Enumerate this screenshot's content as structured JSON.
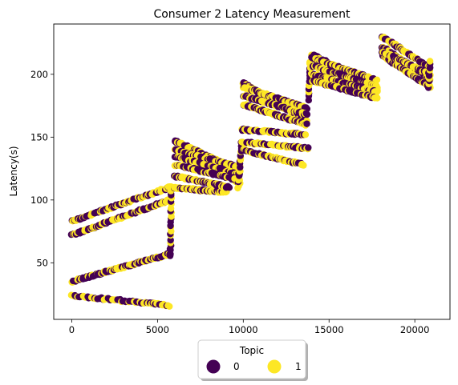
{
  "chart_data": {
    "type": "scatter",
    "title": "Consumer 2 Latency Measurement",
    "xlabel": "",
    "ylabel": "Latency(s)",
    "xlim": [
      -1050,
      22050
    ],
    "ylim": [
      5,
      240
    ],
    "x_ticks": [
      0,
      5000,
      10000,
      15000,
      20000
    ],
    "x_tick_labels": [
      "0",
      "5000",
      "10000",
      "15000",
      "20000"
    ],
    "y_ticks": [
      50,
      100,
      150,
      200
    ],
    "y_tick_labels": [
      "50",
      "100",
      "150",
      "200"
    ],
    "grid": false,
    "legend": {
      "title": "Topic",
      "placement": "below-center",
      "entries": [
        {
          "label": "0",
          "color": "#440154"
        },
        {
          "label": "1",
          "color": "#fde725"
        }
      ]
    },
    "series": [
      {
        "name": "0",
        "color": "#440154"
      },
      {
        "name": "1",
        "color": "#fde725"
      }
    ],
    "segments": [
      {
        "x": [
          0,
          5700
        ],
        "y": [
          24,
          16
        ],
        "n": 70
      },
      {
        "x": [
          0,
          5700
        ],
        "y": [
          35,
          57
        ],
        "n": 110
      },
      {
        "x": [
          0,
          5700
        ],
        "y": [
          72,
          100
        ],
        "n": 110
      },
      {
        "x": [
          0,
          5700
        ],
        "y": [
          83,
          110
        ],
        "n": 110
      },
      {
        "x": [
          5750,
          5800
        ],
        "y": [
          55,
          110
        ],
        "n": 25
      },
      {
        "x": [
          5900,
          9000
        ],
        "y": [
          110,
          106
        ],
        "n": 60
      },
      {
        "x": [
          6000,
          9200
        ],
        "y": [
          119,
          110
        ],
        "n": 60
      },
      {
        "x": [
          6000,
          9800
        ],
        "y": [
          147,
          113
        ],
        "n": 70
      },
      {
        "x": [
          6000,
          9800
        ],
        "y": [
          147,
          123
        ],
        "n": 70
      },
      {
        "x": [
          6000,
          9800
        ],
        "y": [
          140,
          126
        ],
        "n": 70
      },
      {
        "x": [
          6000,
          9800
        ],
        "y": [
          135,
          120
        ],
        "n": 70
      },
      {
        "x": [
          6000,
          9800
        ],
        "y": [
          128,
          116
        ],
        "n": 70
      },
      {
        "x": [
          9700,
          9900
        ],
        "y": [
          110,
          145
        ],
        "n": 20
      },
      {
        "x": [
          9900,
          13500
        ],
        "y": [
          140,
          128
        ],
        "n": 70
      },
      {
        "x": [
          9900,
          13800
        ],
        "y": [
          146,
          141
        ],
        "n": 70
      },
      {
        "x": [
          9900,
          13600
        ],
        "y": [
          156,
          152
        ],
        "n": 70
      },
      {
        "x": [
          10000,
          13700
        ],
        "y": [
          193,
          163
        ],
        "n": 80
      },
      {
        "x": [
          10000,
          13700
        ],
        "y": [
          190,
          173
        ],
        "n": 80
      },
      {
        "x": [
          10000,
          13700
        ],
        "y": [
          183,
          168
        ],
        "n": 80
      },
      {
        "x": [
          10000,
          13700
        ],
        "y": [
          176,
          160
        ],
        "n": 80
      },
      {
        "x": [
          13800,
          13900
        ],
        "y": [
          180,
          210
        ],
        "n": 15
      },
      {
        "x": [
          14000,
          17800
        ],
        "y": [
          216,
          188
        ],
        "n": 80
      },
      {
        "x": [
          14000,
          17800
        ],
        "y": [
          213,
          195
        ],
        "n": 80
      },
      {
        "x": [
          14000,
          17800
        ],
        "y": [
          207,
          190
        ],
        "n": 80
      },
      {
        "x": [
          14000,
          17800
        ],
        "y": [
          200,
          186
        ],
        "n": 80
      },
      {
        "x": [
          14000,
          17800
        ],
        "y": [
          195,
          181
        ],
        "n": 80
      },
      {
        "x": [
          18100,
          20900
        ],
        "y": [
          230,
          205
        ],
        "n": 60
      },
      {
        "x": [
          18100,
          20900
        ],
        "y": [
          222,
          196
        ],
        "n": 60
      },
      {
        "x": [
          18100,
          20900
        ],
        "y": [
          215,
          190
        ],
        "n": 60
      },
      {
        "x": [
          18100,
          20900
        ],
        "y": [
          218,
          200
        ],
        "n": 60
      },
      {
        "x": [
          20800,
          20900
        ],
        "y": [
          190,
          210
        ],
        "n": 10
      }
    ]
  }
}
